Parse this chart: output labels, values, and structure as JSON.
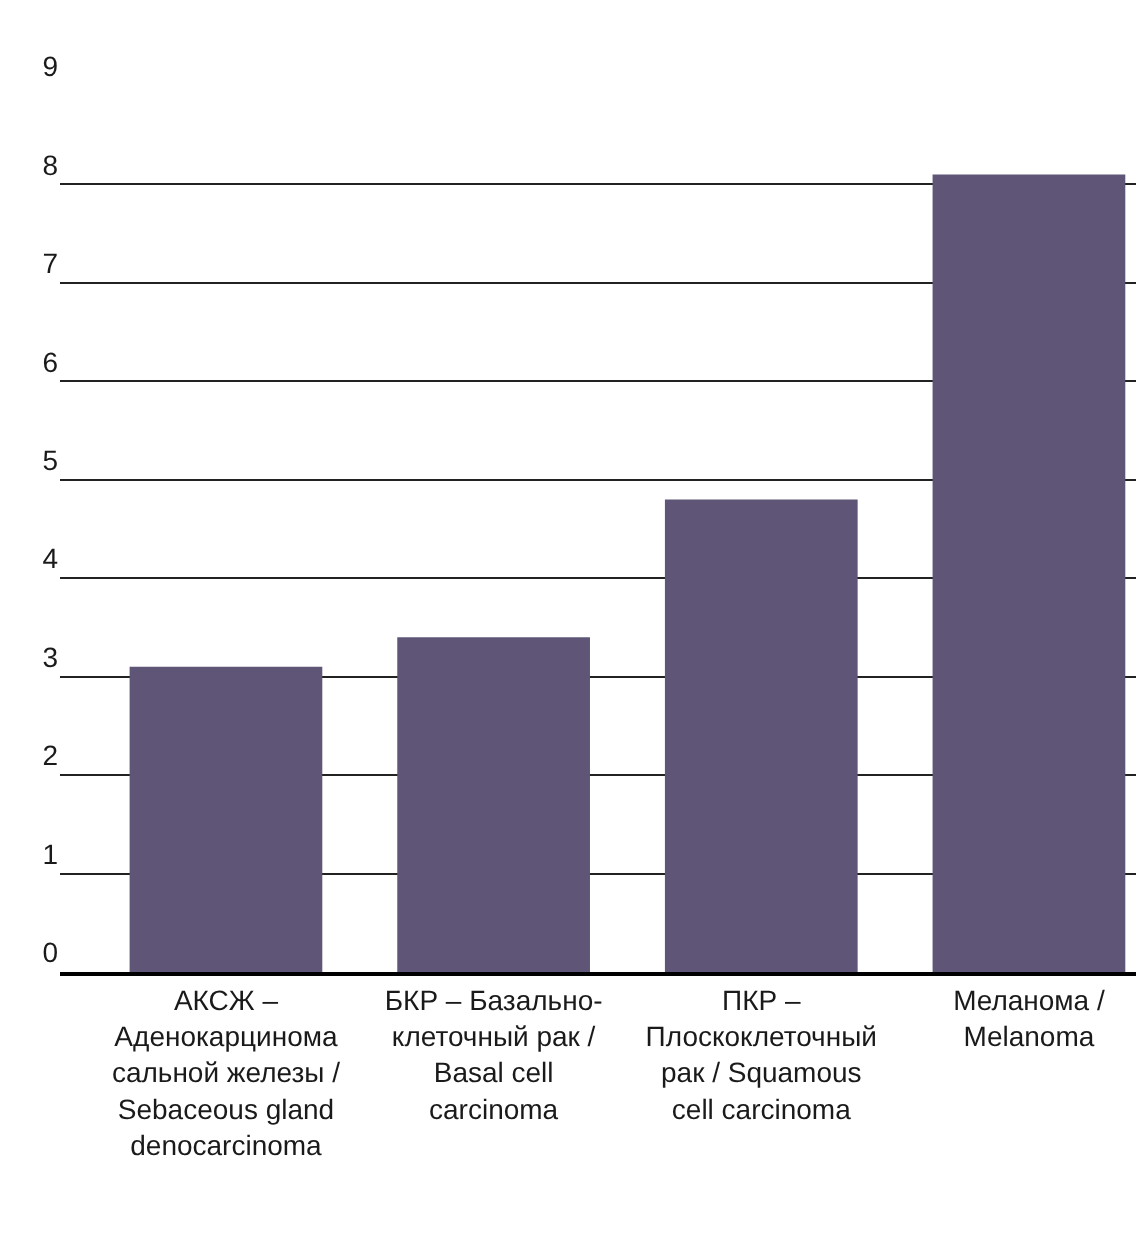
{
  "chart_data": {
    "type": "bar",
    "categories": [
      "АКСЖ – Аденокарцинома сальной железы / Sebaceous gland denocarcinoma",
      "БКР – Базально-клеточный рак / Basal cell carcinoma",
      "ПКР – Плоскоклеточный рак / Squamous cell carcinoma",
      "Меланома / Melanoma"
    ],
    "values": [
      3.1,
      3.4,
      4.8,
      8.1
    ],
    "color": "#5f5677",
    "ylim": [
      0,
      9
    ],
    "yticks": [
      0,
      1,
      2,
      3,
      4,
      5,
      6,
      7,
      8,
      9
    ],
    "grid": "y"
  }
}
